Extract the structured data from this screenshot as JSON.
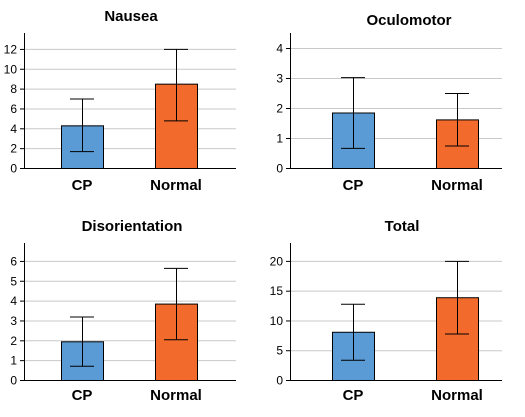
{
  "colors": {
    "cp": "#5b9bd5",
    "normal": "#f26b2c",
    "grid": "#c8c8c8",
    "axis": "#000000"
  },
  "chart_data": [
    {
      "type": "bar",
      "title": "Nausea",
      "categories": [
        "CP",
        "Normal"
      ],
      "values": [
        4.3,
        8.5
      ],
      "error_low": [
        1.7,
        4.8
      ],
      "error_high": [
        7.0,
        12.0
      ],
      "yticks": [
        0,
        2,
        4,
        6,
        8,
        10,
        12
      ],
      "ylim": [
        0,
        13
      ],
      "grid": true
    },
    {
      "type": "bar",
      "title": "Oculomotor",
      "categories": [
        "CP",
        "Normal"
      ],
      "values": [
        1.85,
        1.62
      ],
      "error_low": [
        0.67,
        0.75
      ],
      "error_high": [
        3.03,
        2.5
      ],
      "yticks": [
        0,
        1,
        2,
        3,
        4
      ],
      "ylim": [
        0,
        4.3
      ],
      "grid": true
    },
    {
      "type": "bar",
      "title": "Disorientation",
      "categories": [
        "CP",
        "Normal"
      ],
      "values": [
        1.95,
        3.85
      ],
      "error_low": [
        0.72,
        2.05
      ],
      "error_high": [
        3.2,
        5.65
      ],
      "yticks": [
        0,
        1,
        2,
        3,
        4,
        5,
        6
      ],
      "ylim": [
        0,
        6.6
      ],
      "grid": true
    },
    {
      "type": "bar",
      "title": "Total",
      "categories": [
        "CP",
        "Normal"
      ],
      "values": [
        8.1,
        13.9
      ],
      "error_low": [
        3.4,
        7.8
      ],
      "error_high": [
        12.8,
        20.0
      ],
      "yticks": [
        0,
        5,
        10,
        15,
        20
      ],
      "ylim": [
        0,
        22
      ],
      "grid": true
    }
  ]
}
